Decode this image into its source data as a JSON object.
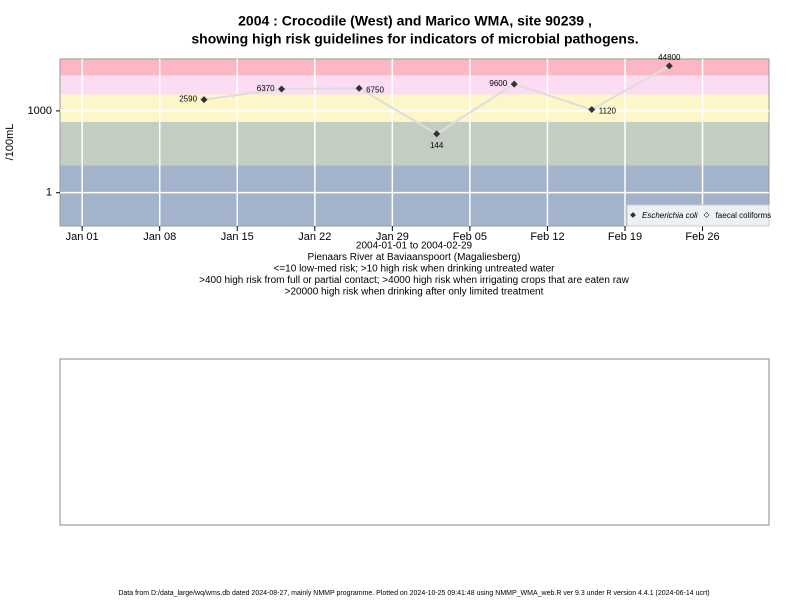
{
  "chart_data": {
    "type": "line",
    "title": [
      "2004 : Crocodile (West) and Marico WMA, site 90239 ,",
      "showing high risk guidelines for indicators of microbial pathogens."
    ],
    "ylabel": "/100mL",
    "notes": [
      "2004-01-01 to 2004-02-29",
      "Pienaars River at Baviaanspoort (Magaliesberg)",
      "<=10 low-med risk; >10 high risk when drinking untreated water",
      ">400 high risk from full or partial contact; >4000 high risk when irrigating crops that are eaten raw",
      ">20000 high risk when drinking after only limited treatment"
    ],
    "x": [
      "2004-01-12",
      "2004-01-19",
      "2004-01-26",
      "2004-02-02",
      "2004-02-09",
      "2004-02-16",
      "2004-02-23"
    ],
    "series": [
      {
        "name": "Escherichia coli",
        "color": "#333333",
        "values": [
          2590,
          6370,
          6750,
          144,
          9600,
          1120,
          44800
        ]
      },
      {
        "name": "faecal coliforms",
        "color": "#333333",
        "values": [
          null,
          null,
          null,
          null,
          null,
          null,
          null
        ]
      }
    ],
    "log_y": true,
    "ylim": [
      0.06,
      80000
    ],
    "yticks": [
      1,
      1000
    ],
    "xlim": [
      "2003-12-30",
      "2004-03-03"
    ],
    "xticks": [
      {
        "value": "2004-01-01",
        "label": "Jan 01"
      },
      {
        "value": "2004-01-08",
        "label": "Jan 08"
      },
      {
        "value": "2004-01-15",
        "label": "Jan 15"
      },
      {
        "value": "2004-01-22",
        "label": "Jan 22"
      },
      {
        "value": "2004-01-29",
        "label": "Jan 29"
      },
      {
        "value": "2004-02-05",
        "label": "Feb 05"
      },
      {
        "value": "2004-02-12",
        "label": "Feb 12"
      },
      {
        "value": "2004-02-19",
        "label": "Feb 19"
      },
      {
        "value": "2004-02-26",
        "label": "Feb 26"
      }
    ],
    "band_thresholds": [
      10,
      400,
      4000,
      20000
    ],
    "band_colors": [
      "#a2b3cb",
      "#c3cdc2",
      "#fdf6c8",
      "#fbdcf2",
      "#fbb7c4"
    ],
    "line_color": "#dddddd",
    "grid": true,
    "legend_position": "bottom-right"
  },
  "footer": "Data from D:/data_large/wq/wms.db dated 2024-08-27, mainly NMMP programme. Plotted on 2024-10-25 09:41:48 using NMMP_WMA_web.R ver 9.3 under R version 4.4.1 (2024-06-14 ucrt)"
}
